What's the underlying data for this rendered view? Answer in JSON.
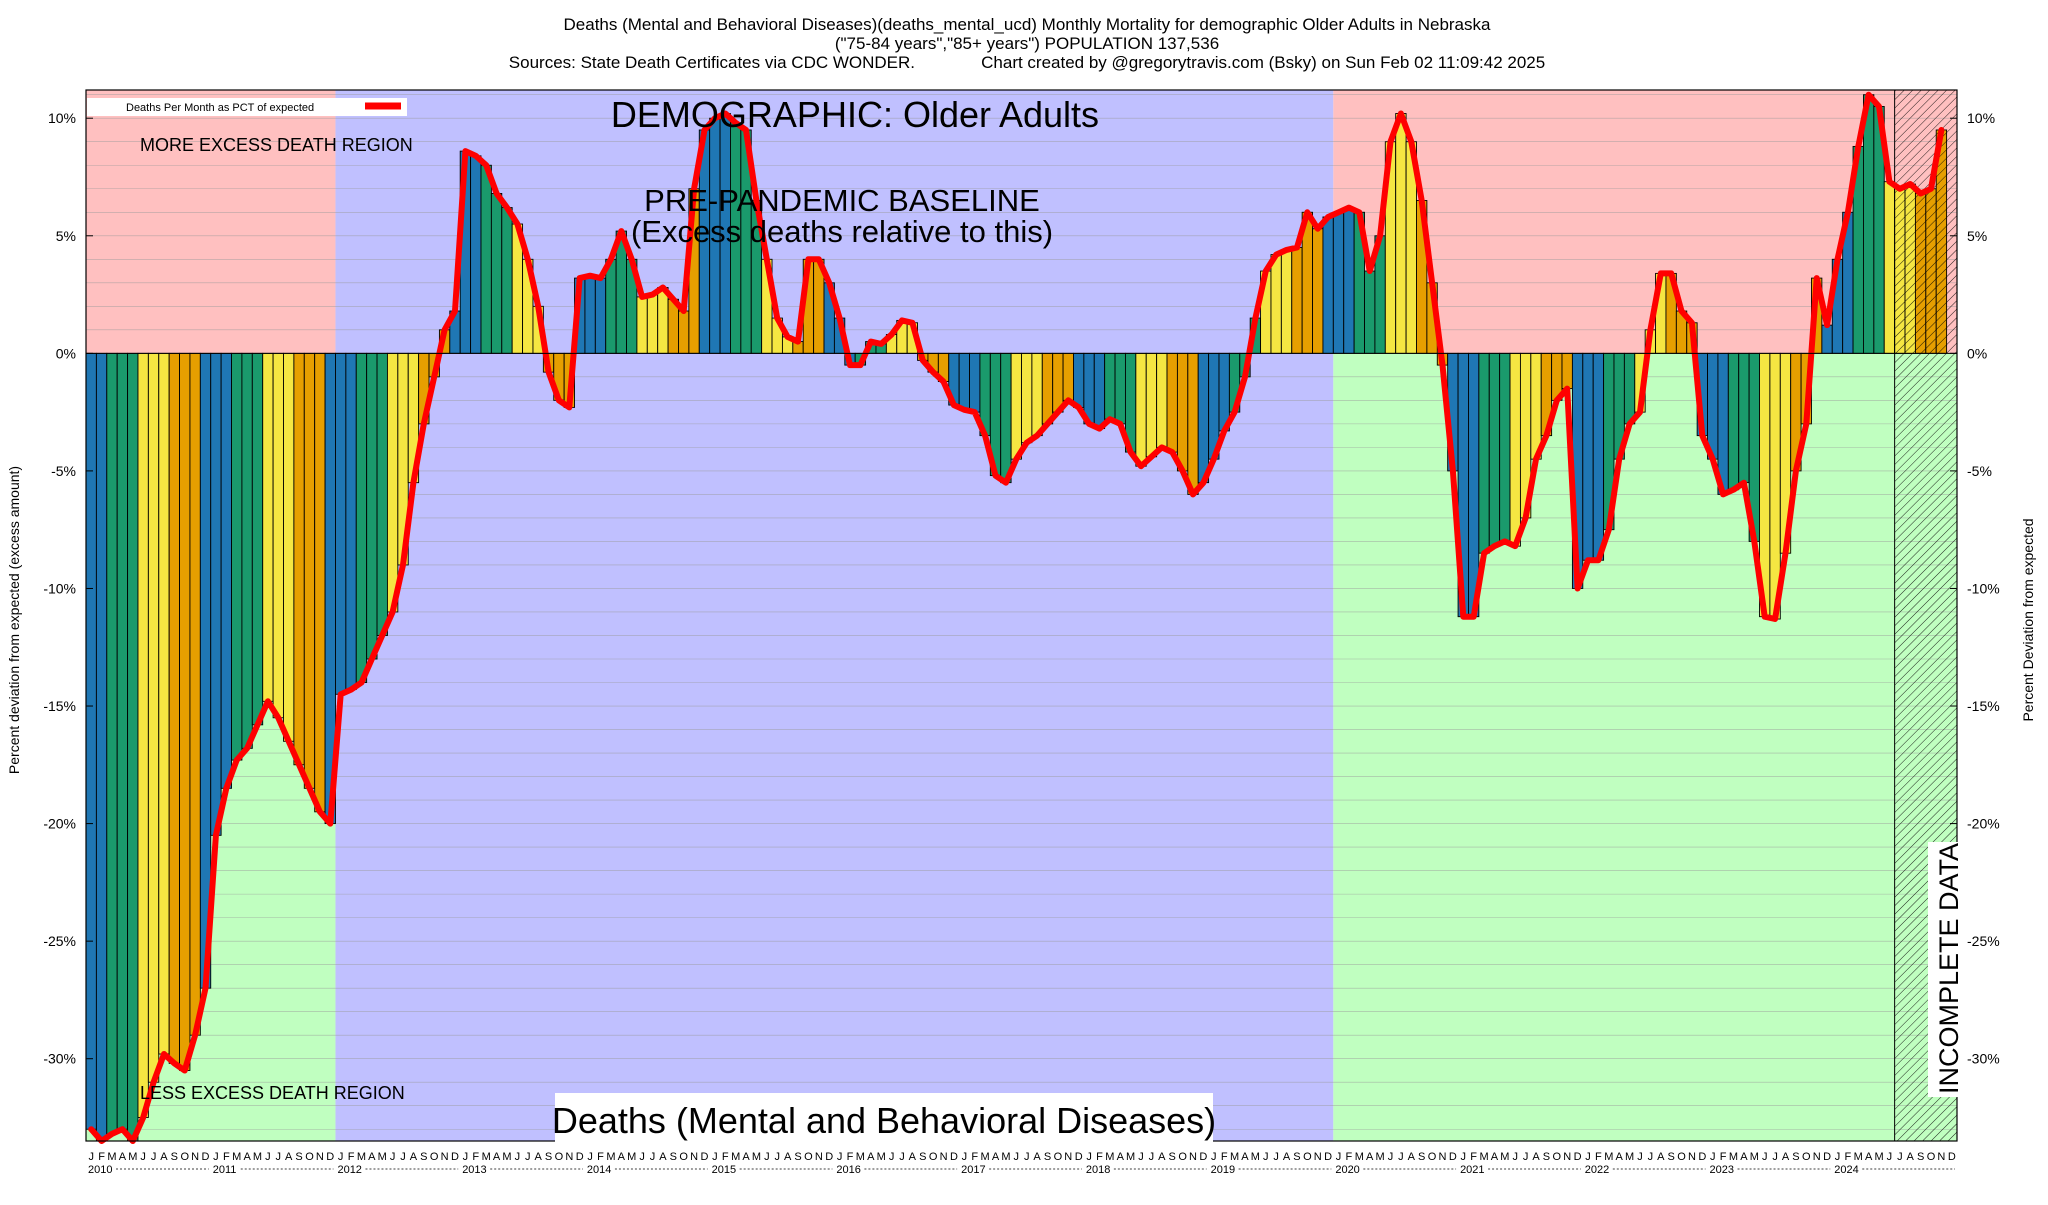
{
  "chart_data": {
    "type": "bar",
    "title_lines": [
      "Deaths (Mental and Behavioral Diseases)(deaths_mental_ucd) Monthly Mortality for demographic Older Adults in Nebraska",
      "(\"75-84 years\",\"85+ years\") POPULATION 137,536",
      "Sources: State Death Certificates via CDC WONDER.              Chart created by @gregorytravis.com (Bsky) on Sun Feb 02 11:09:42 2025"
    ],
    "ylabel_left": "Percent deviation from expected (excess amount)",
    "ylabel_right": "Percent Deviation from expected",
    "legend_label": "Deaths Per Month as PCT of expected",
    "legend_position": "top-left",
    "annotations": {
      "demographic": "DEMOGRAPHIC: Older Adults",
      "baseline_line1": "PRE-PANDEMIC BASELINE",
      "baseline_line2": "(Excess deaths relative to this)",
      "more_excess": "MORE EXCESS DEATH REGION",
      "less_excess": "LESS EXCESS DEATH REGION",
      "cause": "Deaths (Mental and Behavioral Diseases)",
      "incomplete": "INCOMPLETE DATA"
    },
    "ylim": [
      -33.5,
      11.2
    ],
    "y_ticks": [
      10,
      5,
      0,
      -5,
      -10,
      -15,
      -20,
      -25,
      -30
    ],
    "y_tick_labels": [
      "10%",
      "5%",
      "0%",
      "-5%",
      "-10%",
      "-15%",
      "-20%",
      "-25%",
      "-30%"
    ],
    "grid": true,
    "start": "2010-01",
    "month_letters": [
      "J",
      "F",
      "M",
      "A",
      "M",
      "J",
      "J",
      "A",
      "S",
      "O",
      "N",
      "D"
    ],
    "years": [
      "2010",
      "2011",
      "2012",
      "2013",
      "2014",
      "2015",
      "2016",
      "2017",
      "2018",
      "2019",
      "2020",
      "2021",
      "2022",
      "2023",
      "2024"
    ],
    "season_colors": [
      "#1f77b4",
      "#1a9a6c",
      "#f5e642",
      "#e69f00"
    ],
    "line_color": "#ff0000",
    "baseline_period": [
      "2012-01",
      "2019-12"
    ],
    "incomplete_from": "2024-07",
    "region_colors": {
      "more": "#ffc0c0",
      "less": "#c0ffc0",
      "baseline": "#c0c0ff"
    },
    "values": [
      -33.0,
      -33.5,
      -33.2,
      -33.0,
      -33.5,
      -32.5,
      -31.0,
      -29.8,
      -30.2,
      -30.5,
      -29.0,
      -27.0,
      -20.5,
      -18.5,
      -17.3,
      -16.8,
      -15.8,
      -14.8,
      -15.5,
      -16.5,
      -17.5,
      -18.5,
      -19.5,
      -20.0,
      -14.5,
      -14.3,
      -14.0,
      -13.0,
      -12.0,
      -11.0,
      -9.0,
      -5.5,
      -3.0,
      -1.0,
      1.0,
      1.8,
      8.6,
      8.4,
      8.0,
      6.8,
      6.2,
      5.5,
      4.0,
      2.0,
      -0.8,
      -2.0,
      -2.3,
      3.2,
      3.3,
      3.2,
      4.0,
      5.2,
      4.0,
      2.4,
      2.5,
      2.8,
      2.3,
      1.8,
      7.0,
      9.5,
      10.0,
      10.2,
      9.8,
      9.5,
      6.5,
      4.0,
      1.5,
      0.7,
      0.5,
      4.0,
      4.0,
      3.0,
      1.5,
      -0.5,
      -0.5,
      0.5,
      0.4,
      0.8,
      1.4,
      1.3,
      -0.3,
      -0.8,
      -1.2,
      -2.2,
      -2.4,
      -2.5,
      -3.5,
      -5.2,
      -5.5,
      -4.5,
      -3.8,
      -3.5,
      -3.0,
      -2.5,
      -2.0,
      -2.3,
      -3.0,
      -3.2,
      -2.8,
      -3.0,
      -4.2,
      -4.8,
      -4.4,
      -4.0,
      -4.2,
      -5.0,
      -6.0,
      -5.5,
      -4.5,
      -3.3,
      -2.5,
      -1.0,
      1.5,
      3.5,
      4.2,
      4.4,
      4.5,
      6.0,
      5.3,
      5.8,
      6.0,
      6.2,
      6.0,
      3.5,
      5.0,
      9.0,
      10.2,
      9.0,
      6.5,
      3.0,
      -0.5,
      -5.0,
      -11.2,
      -11.2,
      -8.5,
      -8.2,
      -8.0,
      -8.2,
      -7.0,
      -4.5,
      -3.5,
      -2.0,
      -1.5,
      -10.0,
      -8.8,
      -8.8,
      -7.5,
      -4.5,
      -3.0,
      -2.5,
      1.0,
      3.4,
      3.4,
      1.8,
      1.3,
      -3.5,
      -4.5,
      -6.0,
      -5.8,
      -5.5,
      -8.0,
      -11.2,
      -11.3,
      -8.5,
      -5.0,
      -3.0,
      3.2,
      1.2,
      4.0,
      6.0,
      8.8,
      11.0,
      10.5,
      7.3,
      7.0,
      7.2,
      6.8,
      7.0,
      9.5
    ]
  }
}
